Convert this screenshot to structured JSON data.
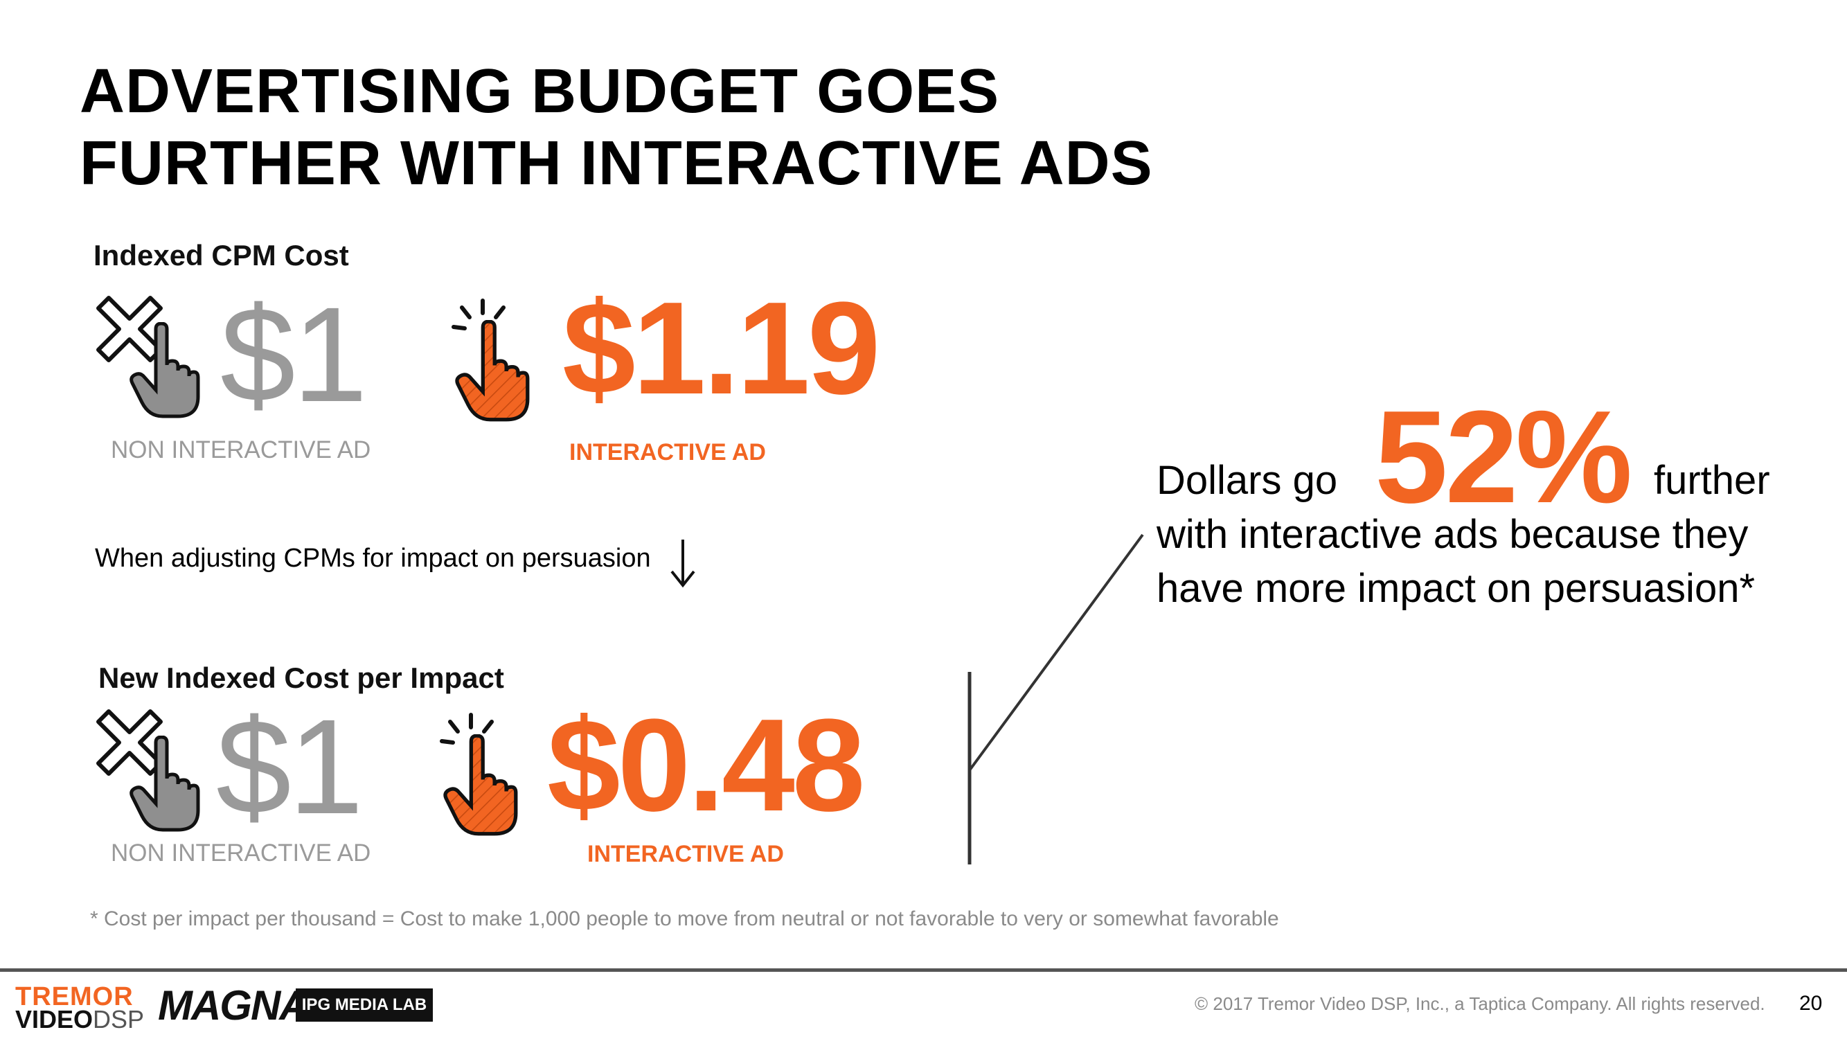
{
  "title": {
    "line1": "ADVERTISING BUDGET GOES",
    "line2": "FURTHER WITH INTERACTIVE ADS"
  },
  "cpm": {
    "heading": "Indexed CPM Cost",
    "non_interactive_value": "$1",
    "non_interactive_label": "NON INTERACTIVE AD",
    "interactive_value": "$1.19",
    "interactive_label": "INTERACTIVE AD"
  },
  "adjust_text": "When adjusting CPMs for impact on persuasion",
  "impact": {
    "heading": "New Indexed Cost per Impact",
    "non_interactive_value": "$1",
    "non_interactive_label": "NON INTERACTIVE AD",
    "interactive_value": "$0.48",
    "interactive_label": "INTERACTIVE AD"
  },
  "callout": {
    "prefix": "Dollars go",
    "percent": "52%",
    "suffix": "further",
    "line2": "with interactive ads because they",
    "line3": "have more impact on persuasion*"
  },
  "footnote": "* Cost per impact per thousand = Cost to make 1,000 people to move from neutral or not favorable to very or somewhat favorable",
  "footer": {
    "copyright": "© 2017 Tremor Video DSP, Inc., a Taptica Company. All rights reserved.",
    "page_number": "20",
    "logo_tremor_line1": "TREMOR",
    "logo_tremor_video": "VIDEO",
    "logo_tremor_dsp": "DSP",
    "logo_magna": "MAGNA",
    "logo_ipg": "IPG MEDIA LAB"
  },
  "colors": {
    "accent": "#f26522",
    "muted": "#9a9a9a"
  },
  "icons": {
    "non_interactive": "crossed-hand-cursor-icon",
    "interactive": "clicking-hand-cursor-icon",
    "arrow": "arrow-down-icon"
  }
}
